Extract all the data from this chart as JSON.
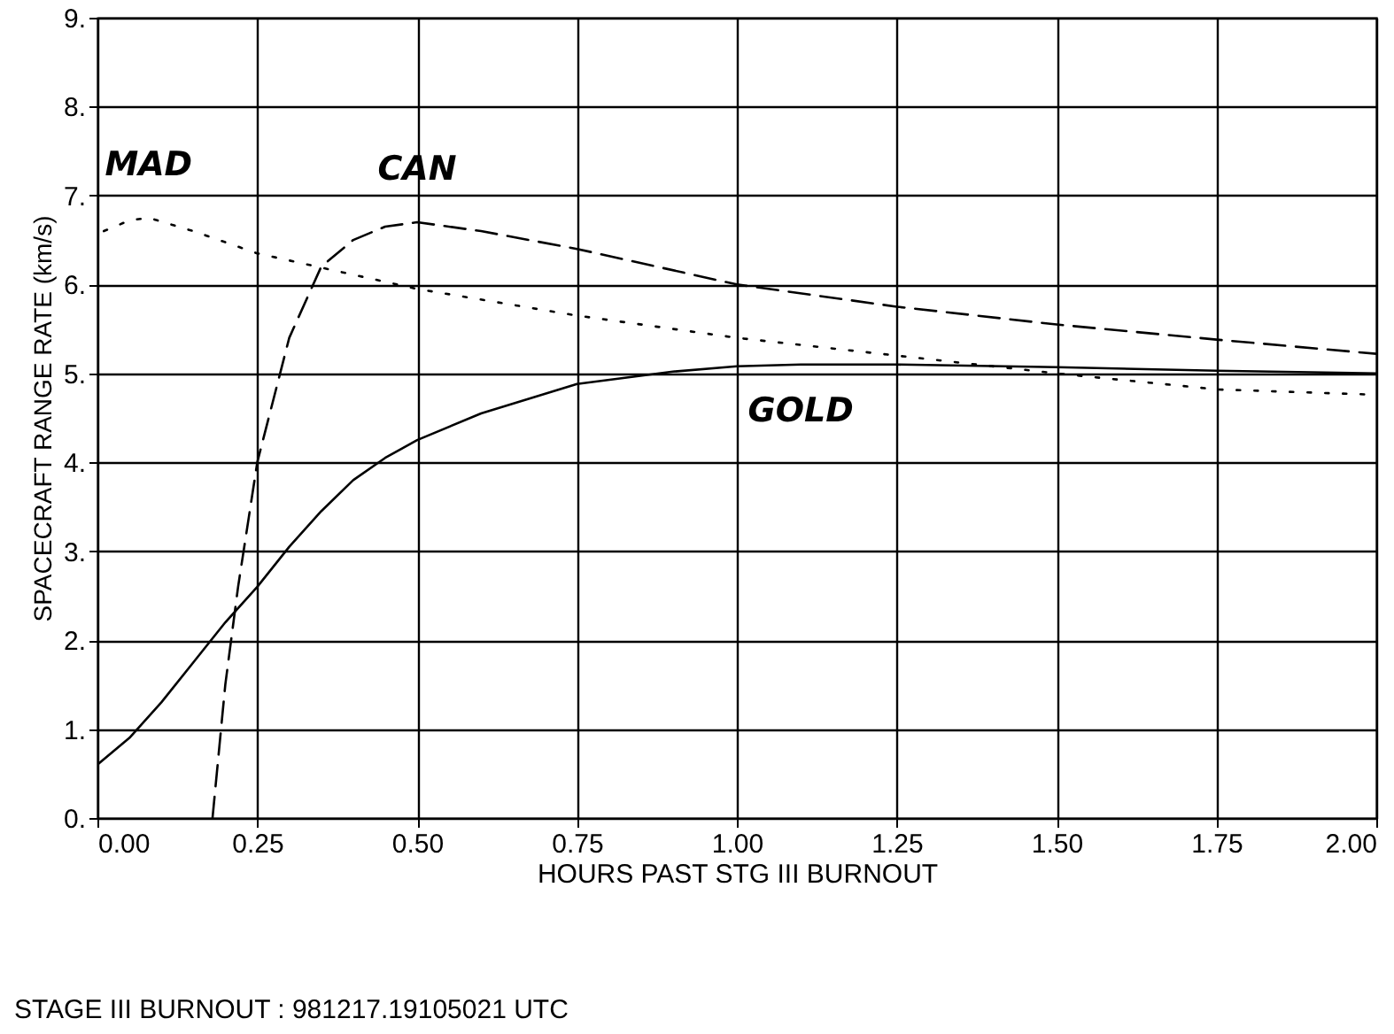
{
  "chart_data": {
    "type": "line",
    "xlabel": "HOURS PAST STG III BURNOUT",
    "ylabel": "SPACECRAFT RANGE RATE (km/s)",
    "annotations": [
      "STAGE III BURNOUT : 981217.19105021 UTC"
    ],
    "xlim": [
      0,
      2
    ],
    "ylim": [
      0,
      9
    ],
    "xticks": [
      {
        "value": 0,
        "label": "0.00"
      },
      {
        "value": 0.25,
        "label": "0.25"
      },
      {
        "value": 0.5,
        "label": "0.50"
      },
      {
        "value": 0.75,
        "label": "0.75"
      },
      {
        "value": 1,
        "label": "1.00"
      },
      {
        "value": 1.25,
        "label": "1.25"
      },
      {
        "value": 1.5,
        "label": "1.50"
      },
      {
        "value": 1.75,
        "label": "1.75"
      },
      {
        "value": 2,
        "label": "2.00"
      }
    ],
    "yticks": [
      {
        "value": 0,
        "label": "0."
      },
      {
        "value": 1,
        "label": "1."
      },
      {
        "value": 2,
        "label": "2."
      },
      {
        "value": 3,
        "label": "3."
      },
      {
        "value": 4,
        "label": "4."
      },
      {
        "value": 5,
        "label": "5."
      },
      {
        "value": 6,
        "label": "6."
      },
      {
        "value": 7,
        "label": "7."
      },
      {
        "value": 8,
        "label": "8."
      },
      {
        "value": 9,
        "label": "9."
      }
    ],
    "grid": true,
    "series": [
      {
        "name": "MAD",
        "color": "#000000",
        "line_style": "dotted",
        "x": [
          0.01,
          0.05,
          0.08,
          0.15,
          0.25,
          0.375,
          0.5,
          0.75,
          1.0,
          1.25,
          1.5,
          1.75,
          2.0
        ],
        "values": [
          6.6,
          6.72,
          6.75,
          6.6,
          6.35,
          6.15,
          5.95,
          5.65,
          5.4,
          5.2,
          5.0,
          4.82,
          4.76
        ]
      },
      {
        "name": "CAN",
        "color": "#000000",
        "line_style": "dashed",
        "x": [
          0.18,
          0.2,
          0.22,
          0.25,
          0.3,
          0.35,
          0.4,
          0.45,
          0.5,
          0.6,
          0.75,
          1.0,
          1.25,
          1.5,
          1.75,
          2.0
        ],
        "values": [
          0,
          1.5,
          2.6,
          4.0,
          5.4,
          6.2,
          6.5,
          6.65,
          6.7,
          6.6,
          6.4,
          6.0,
          5.75,
          5.55,
          5.38,
          5.22
        ]
      },
      {
        "name": "GOLD",
        "color": "#000000",
        "line_style": "solid",
        "x": [
          0,
          0.05,
          0.1,
          0.15,
          0.2,
          0.25,
          0.3,
          0.35,
          0.4,
          0.45,
          0.5,
          0.6,
          0.75,
          0.9,
          1.0,
          1.1,
          1.25,
          1.5,
          1.75,
          2.0
        ],
        "values": [
          0.6,
          0.9,
          1.3,
          1.75,
          2.2,
          2.6,
          3.05,
          3.45,
          3.8,
          4.05,
          4.25,
          4.55,
          4.88,
          5.02,
          5.08,
          5.1,
          5.1,
          5.07,
          5.03,
          5.0
        ]
      }
    ]
  }
}
